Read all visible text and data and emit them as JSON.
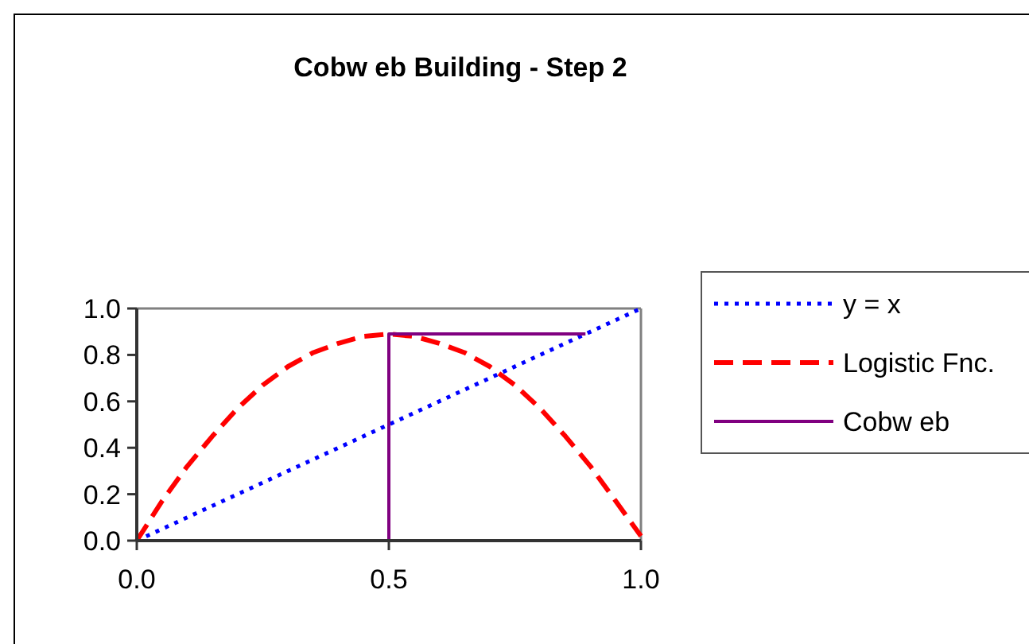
{
  "chart_data": {
    "type": "line",
    "title": "Cobw eb Building - Step 2",
    "xlim": [
      0,
      1
    ],
    "xticks": [
      {
        "value": 0,
        "label": "0.0"
      },
      {
        "value": 0.5,
        "label": "0.5"
      },
      {
        "value": 1,
        "label": "1.0"
      }
    ],
    "ylim": [
      0,
      1
    ],
    "yticks": [
      {
        "value": 0,
        "label": "0.0"
      },
      {
        "value": 0.2,
        "label": "0.2"
      },
      {
        "value": 0.4,
        "label": "0.4"
      },
      {
        "value": 0.6,
        "label": "0.6"
      },
      {
        "value": 0.8,
        "label": "0.8"
      },
      {
        "value": 1,
        "label": "1.0"
      }
    ],
    "grid": false,
    "legend": "right",
    "marker": "none",
    "series": [
      {
        "name": "y = x",
        "color": "#0000ff",
        "line_style": "dotted",
        "x": [
          0,
          1
        ],
        "values": [
          0,
          1
        ]
      },
      {
        "name": "Logistic Fnc.",
        "color": "#ff0000",
        "line_style": "dashed",
        "x": [
          0,
          0.05,
          0.1,
          0.15,
          0.2,
          0.25,
          0.3,
          0.35,
          0.4,
          0.45,
          0.5,
          0.55,
          0.6,
          0.65,
          0.7,
          0.75,
          0.8,
          0.85,
          0.9,
          0.95,
          1
        ],
        "values": [
          0,
          0.17,
          0.32,
          0.45,
          0.57,
          0.67,
          0.75,
          0.81,
          0.85,
          0.88,
          0.89,
          0.88,
          0.85,
          0.81,
          0.75,
          0.67,
          0.57,
          0.45,
          0.32,
          0.17,
          0.02
        ]
      },
      {
        "name": "Cobw eb",
        "color": "#800080",
        "line_style": "solid",
        "x": [
          0.5,
          0.5,
          0.89
        ],
        "values": [
          0,
          0.89,
          0.89
        ]
      }
    ]
  }
}
